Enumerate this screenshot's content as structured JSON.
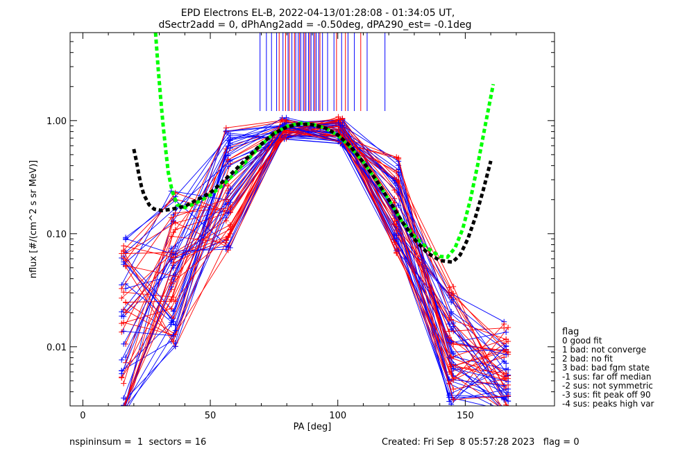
{
  "chart_data": {
    "type": "line",
    "title_line1": "EPD Electrons EL-B, 2022-04-13/01:28:08 - 01:34:05 UT,",
    "title_line2": "dSectr2add = 0, dPhAng2add = -0.50deg, dPA290_est=  -0.1deg",
    "xlabel": "PA [deg]",
    "ylabel": "nflux [#/(cm^2 s sr MeV)]",
    "xlim": [
      -5,
      185
    ],
    "ylim": [
      0.003,
      6
    ],
    "y_scale": "log",
    "x_ticks": [
      0,
      50,
      100,
      150
    ],
    "x_tick_labels": [
      "0",
      "50",
      "100",
      "150"
    ],
    "y_ticks": [
      0.01,
      0.1,
      1.0
    ],
    "y_tick_labels": [
      "0.01",
      "0.10",
      "1.00"
    ],
    "colors": {
      "blue": "#0000ff",
      "red": "#ff0000",
      "green": "#00ff00",
      "black": "#000000"
    },
    "pa_sectors_half": [
      16,
      35.5,
      57,
      79,
      101,
      123,
      144.5,
      166
    ],
    "sector_lines": {
      "blue": [
        69.5,
        72,
        74,
        76,
        78.5,
        80.5,
        82,
        83.5,
        84.5,
        85.5,
        86.5,
        87.5,
        88.5,
        89.5,
        90.5,
        91.5,
        92.5,
        94,
        96,
        98.5,
        101.5,
        104,
        106.5,
        111.5,
        118.5
      ],
      "red": [
        77,
        79.5,
        81,
        83,
        85,
        87,
        89,
        91,
        93,
        99.5,
        103,
        109
      ]
    },
    "series": [
      {
        "style": "dashed",
        "color": "green",
        "x": [
          28.5,
          29.5,
          30.5,
          31.5,
          32.5,
          33.5,
          35,
          37,
          40,
          45,
          50,
          55,
          60,
          65,
          70,
          75,
          80,
          85,
          90,
          95,
          100,
          105,
          110,
          115,
          120,
          125,
          130,
          135,
          140,
          143,
          146,
          149,
          152,
          155,
          158,
          161
        ],
        "y": [
          6.0,
          3.0,
          1.6,
          0.9,
          0.55,
          0.35,
          0.24,
          0.18,
          0.17,
          0.19,
          0.22,
          0.27,
          0.35,
          0.46,
          0.61,
          0.77,
          0.89,
          0.95,
          0.93,
          0.86,
          0.74,
          0.58,
          0.43,
          0.3,
          0.2,
          0.13,
          0.095,
          0.075,
          0.063,
          0.062,
          0.075,
          0.11,
          0.2,
          0.42,
          0.95,
          2.1
        ]
      },
      {
        "style": "dashed",
        "color": "black",
        "x": [
          20,
          21,
          22,
          23,
          24,
          26,
          28,
          31,
          35,
          40,
          45,
          50,
          55,
          60,
          65,
          70,
          75,
          80,
          85,
          90,
          95,
          100,
          105,
          110,
          115,
          120,
          125,
          130,
          135,
          140,
          145,
          148,
          151,
          154,
          157,
          160
        ],
        "y": [
          0.56,
          0.44,
          0.33,
          0.26,
          0.22,
          0.18,
          0.165,
          0.16,
          0.165,
          0.175,
          0.2,
          0.23,
          0.29,
          0.37,
          0.48,
          0.62,
          0.77,
          0.88,
          0.93,
          0.92,
          0.86,
          0.75,
          0.59,
          0.43,
          0.3,
          0.2,
          0.13,
          0.09,
          0.068,
          0.058,
          0.056,
          0.065,
          0.09,
          0.14,
          0.24,
          0.44
        ]
      }
    ],
    "legend": {
      "position": "right",
      "title": "flag",
      "items": [
        " 0 good fit",
        " 1 bad: not converge",
        " 2 bad: no fit",
        " 3 bad: bad fgm state",
        "-1 sus: far off median",
        "-2 sus: not symmetric",
        "-3 sus: fit peak off 90",
        "-4 sus: peaks high var"
      ]
    }
  },
  "footer": {
    "left": "nspininsum =  1  sectors = 16",
    "right": "Created: Fri Sep  8 05:57:28 2023   flag = 0"
  }
}
